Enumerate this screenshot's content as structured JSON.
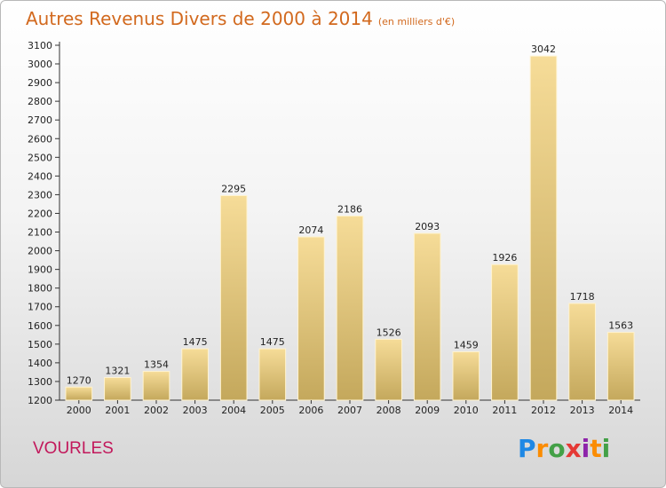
{
  "header": {
    "title": "Autres Revenus Divers de 2000 à 2014",
    "subtitle": "(en milliers d'€)"
  },
  "footer": {
    "commune": "VOURLES",
    "logo": "Proxiti"
  },
  "colors": {
    "title": "#d2691e",
    "commune": "#c2185b",
    "bar_light": "#f6dc98",
    "bar_dark": "#c4a85c"
  },
  "chart_data": {
    "type": "bar",
    "title": "Autres Revenus Divers de 2000 à 2014",
    "subtitle": "(en milliers d'€)",
    "categories": [
      "2000",
      "2001",
      "2002",
      "2003",
      "2004",
      "2005",
      "2006",
      "2007",
      "2008",
      "2009",
      "2010",
      "2011",
      "2012",
      "2013",
      "2014"
    ],
    "values": [
      1270,
      1321,
      1354,
      1475,
      2295,
      1475,
      2074,
      2186,
      1526,
      2093,
      1459,
      1926,
      3042,
      1718,
      1563
    ],
    "ylim": [
      1200,
      3100
    ],
    "ytick_step": 100,
    "grid": false,
    "legend": "none",
    "xlabel": "",
    "ylabel": ""
  }
}
